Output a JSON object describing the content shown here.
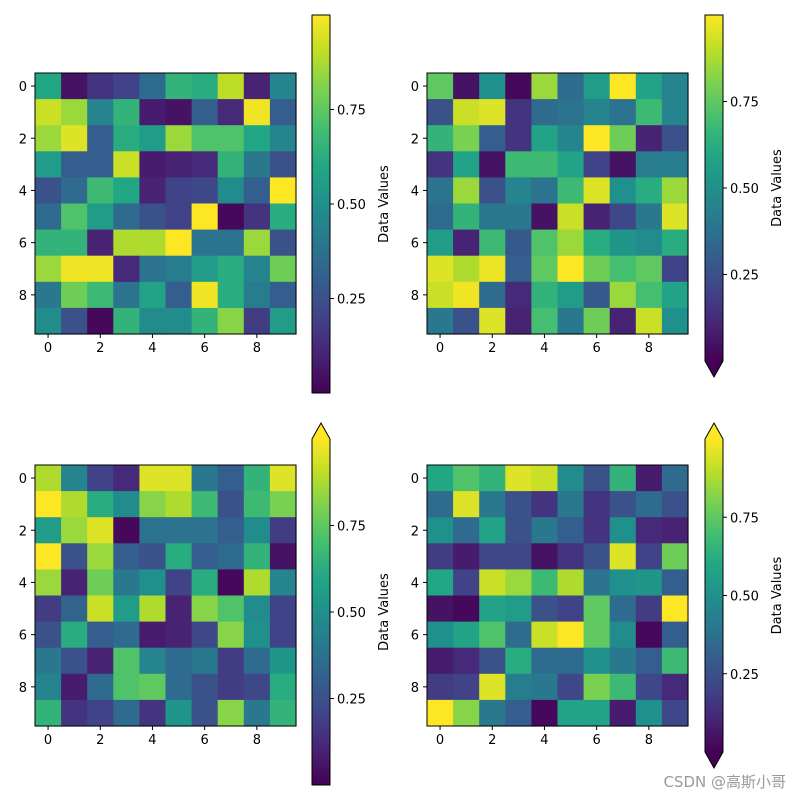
{
  "chart_data": [
    {
      "type": "heatmap",
      "colormap": "viridis",
      "xticks": [
        "0",
        "2",
        "4",
        "6",
        "8"
      ],
      "yticks": [
        "0",
        "2",
        "4",
        "6",
        "8"
      ],
      "colorbar": {
        "label": "Data Values",
        "ticks": [
          "0.25",
          "0.50",
          "0.75"
        ],
        "tick_values": [
          0.25,
          0.5,
          0.75
        ],
        "range": [
          0.0,
          1.0
        ],
        "extend": "neither"
      },
      "z": [
        [
          0.6,
          0.05,
          0.15,
          0.2,
          0.35,
          0.65,
          0.62,
          0.9,
          0.1,
          0.45
        ],
        [
          0.92,
          0.85,
          0.45,
          0.65,
          0.08,
          0.05,
          0.3,
          0.12,
          0.98,
          0.3
        ],
        [
          0.85,
          0.95,
          0.3,
          0.62,
          0.55,
          0.85,
          0.72,
          0.72,
          0.6,
          0.45
        ],
        [
          0.55,
          0.3,
          0.3,
          0.92,
          0.08,
          0.1,
          0.12,
          0.65,
          0.4,
          0.25
        ],
        [
          0.25,
          0.35,
          0.68,
          0.6,
          0.1,
          0.2,
          0.22,
          0.48,
          0.3,
          1.0
        ],
        [
          0.35,
          0.72,
          0.55,
          0.35,
          0.25,
          0.2,
          1.0,
          0.02,
          0.15,
          0.62
        ],
        [
          0.65,
          0.65,
          0.1,
          0.88,
          0.88,
          1.0,
          0.38,
          0.38,
          0.85,
          0.25
        ],
        [
          0.85,
          0.98,
          0.98,
          0.12,
          0.38,
          0.42,
          0.55,
          0.62,
          0.45,
          0.78
        ],
        [
          0.4,
          0.78,
          0.68,
          0.38,
          0.58,
          0.3,
          0.98,
          0.62,
          0.42,
          0.3
        ],
        [
          0.48,
          0.25,
          0.02,
          0.65,
          0.48,
          0.48,
          0.65,
          0.82,
          0.18,
          0.55
        ]
      ]
    },
    {
      "type": "heatmap",
      "colormap": "viridis",
      "xticks": [
        "0",
        "2",
        "4",
        "6",
        "8"
      ],
      "yticks": [
        "0",
        "2",
        "4",
        "6",
        "8"
      ],
      "colorbar": {
        "label": "Data Values",
        "ticks": [
          "0.25",
          "0.50",
          "0.75"
        ],
        "tick_values": [
          0.25,
          0.5,
          0.75
        ],
        "range": [
          0.0,
          1.0
        ],
        "extend": "min"
      },
      "z": [
        [
          0.75,
          0.05,
          0.5,
          0.02,
          0.85,
          0.35,
          0.55,
          1.0,
          0.58,
          0.45
        ],
        [
          0.25,
          0.92,
          0.95,
          0.15,
          0.35,
          0.38,
          0.45,
          0.38,
          0.68,
          0.45
        ],
        [
          0.65,
          0.8,
          0.3,
          0.15,
          0.58,
          0.45,
          1.0,
          0.78,
          0.1,
          0.25
        ],
        [
          0.15,
          0.58,
          0.05,
          0.68,
          0.68,
          0.58,
          0.2,
          0.05,
          0.42,
          0.42
        ],
        [
          0.38,
          0.85,
          0.25,
          0.45,
          0.38,
          0.68,
          0.95,
          0.5,
          0.62,
          0.85
        ],
        [
          0.35,
          0.65,
          0.4,
          0.4,
          0.05,
          0.92,
          0.1,
          0.22,
          0.4,
          0.95
        ],
        [
          0.55,
          0.1,
          0.68,
          0.28,
          0.72,
          0.85,
          0.62,
          0.52,
          0.48,
          0.62
        ],
        [
          0.95,
          0.88,
          0.97,
          0.3,
          0.75,
          1.0,
          0.78,
          0.7,
          0.75,
          0.2
        ],
        [
          0.92,
          0.98,
          0.35,
          0.12,
          0.65,
          0.55,
          0.28,
          0.85,
          0.7,
          0.58
        ],
        [
          0.4,
          0.25,
          0.95,
          0.1,
          0.7,
          0.4,
          0.78,
          0.1,
          0.92,
          0.5
        ]
      ]
    },
    {
      "type": "heatmap",
      "colormap": "viridis",
      "xticks": [
        "0",
        "2",
        "4",
        "6",
        "8"
      ],
      "yticks": [
        "0",
        "2",
        "4",
        "6",
        "8"
      ],
      "colorbar": {
        "label": "Data Values",
        "ticks": [
          "0.25",
          "0.50",
          "0.75"
        ],
        "tick_values": [
          0.25,
          0.5,
          0.75
        ],
        "range": [
          0.0,
          1.0
        ],
        "extend": "max"
      },
      "z": [
        [
          0.88,
          0.45,
          0.2,
          0.12,
          0.95,
          0.95,
          0.4,
          0.3,
          0.65,
          0.95
        ],
        [
          1.0,
          0.88,
          0.62,
          0.48,
          0.82,
          0.88,
          0.68,
          0.25,
          0.68,
          0.8
        ],
        [
          0.55,
          0.85,
          0.95,
          0.02,
          0.38,
          0.38,
          0.38,
          0.3,
          0.48,
          0.18
        ],
        [
          1.0,
          0.25,
          0.85,
          0.3,
          0.25,
          0.62,
          0.3,
          0.35,
          0.65,
          0.05
        ],
        [
          0.85,
          0.1,
          0.78,
          0.4,
          0.5,
          0.2,
          0.62,
          0.02,
          0.88,
          0.45
        ],
        [
          0.18,
          0.32,
          0.92,
          0.55,
          0.88,
          0.1,
          0.82,
          0.72,
          0.48,
          0.2
        ],
        [
          0.25,
          0.62,
          0.3,
          0.35,
          0.08,
          0.1,
          0.22,
          0.82,
          0.5,
          0.2
        ],
        [
          0.4,
          0.25,
          0.1,
          0.72,
          0.45,
          0.35,
          0.4,
          0.18,
          0.35,
          0.52
        ],
        [
          0.45,
          0.08,
          0.35,
          0.72,
          0.75,
          0.35,
          0.25,
          0.18,
          0.22,
          0.62
        ],
        [
          0.65,
          0.15,
          0.2,
          0.35,
          0.15,
          0.52,
          0.25,
          0.82,
          0.4,
          0.65
        ]
      ]
    },
    {
      "type": "heatmap",
      "colormap": "viridis",
      "xticks": [
        "0",
        "2",
        "4",
        "6",
        "8"
      ],
      "yticks": [
        "0",
        "2",
        "4",
        "6",
        "8"
      ],
      "colorbar": {
        "label": "Data Values",
        "ticks": [
          "0.25",
          "0.50",
          "0.75"
        ],
        "tick_values": [
          0.25,
          0.5,
          0.75
        ],
        "range": [
          0.0,
          1.0
        ],
        "extend": "both"
      },
      "z": [
        [
          0.6,
          0.72,
          0.65,
          0.95,
          0.92,
          0.48,
          0.25,
          0.65,
          0.08,
          0.35
        ],
        [
          0.35,
          0.95,
          0.4,
          0.25,
          0.15,
          0.4,
          0.15,
          0.25,
          0.35,
          0.25
        ],
        [
          0.5,
          0.35,
          0.58,
          0.25,
          0.4,
          0.3,
          0.15,
          0.5,
          0.12,
          0.1
        ],
        [
          0.18,
          0.08,
          0.22,
          0.22,
          0.05,
          0.15,
          0.25,
          0.95,
          0.2,
          0.78
        ],
        [
          0.6,
          0.2,
          0.92,
          0.85,
          0.68,
          0.88,
          0.38,
          0.5,
          0.52,
          0.3
        ],
        [
          0.05,
          0.02,
          0.58,
          0.55,
          0.25,
          0.2,
          0.75,
          0.35,
          0.18,
          1.0
        ],
        [
          0.5,
          0.58,
          0.72,
          0.35,
          0.92,
          1.0,
          0.75,
          0.48,
          0.02,
          0.3
        ],
        [
          0.08,
          0.12,
          0.25,
          0.62,
          0.35,
          0.35,
          0.5,
          0.4,
          0.3,
          0.68
        ],
        [
          0.18,
          0.2,
          0.95,
          0.42,
          0.4,
          0.22,
          0.8,
          0.68,
          0.22,
          0.12
        ],
        [
          1.0,
          0.82,
          0.4,
          0.3,
          0.02,
          0.58,
          0.58,
          0.08,
          0.5,
          0.22
        ]
      ]
    }
  ],
  "watermark": "CSDN @高斯小哥"
}
